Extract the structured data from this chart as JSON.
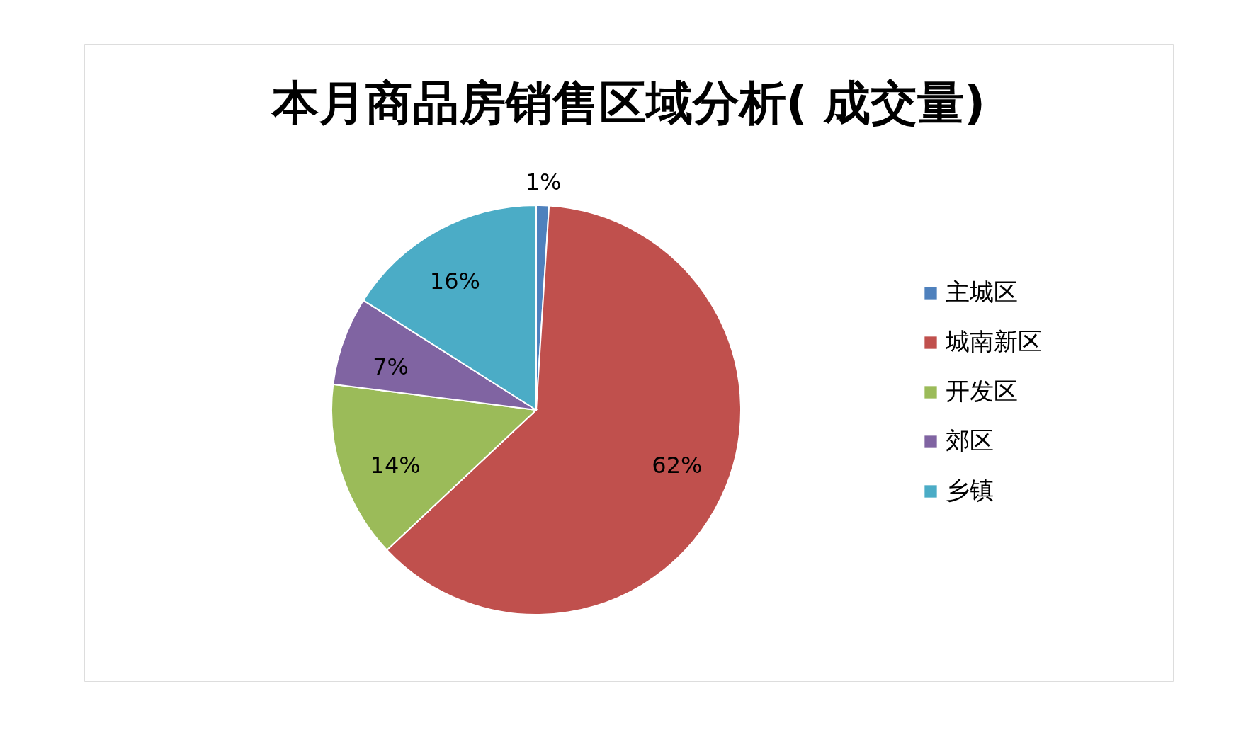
{
  "chart_data": {
    "type": "pie",
    "title": "本月商品房销售区域分析( 成交量)",
    "categories": [
      "主城区",
      "城南新区",
      "开发区",
      "郊区",
      "乡镇"
    ],
    "values": [
      1,
      62,
      14,
      7,
      16
    ],
    "colors": [
      "#4f81bd",
      "#c0504d",
      "#9bbb59",
      "#8064a2",
      "#4bacc6"
    ],
    "value_labels": [
      "1%",
      "62%",
      "14%",
      "7%",
      "16%"
    ],
    "legend": "right"
  }
}
